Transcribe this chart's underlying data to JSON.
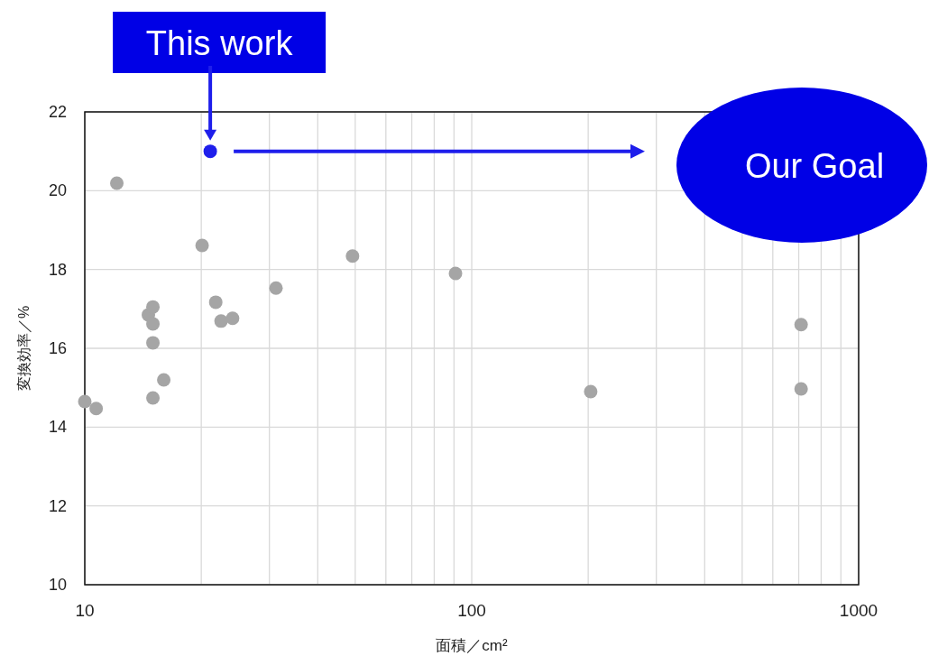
{
  "chart_data": {
    "type": "scatter",
    "xlabel": "面積／cm²",
    "ylabel": "変換効率／%",
    "log": "x",
    "grid": true,
    "marker": "circle",
    "xlim": [
      10,
      1000
    ],
    "ylim": [
      10,
      22
    ],
    "xticks": [
      10,
      {
        "value": 20,
        "label": null
      },
      {
        "value": 30,
        "label": null
      },
      {
        "value": 40,
        "label": null
      },
      {
        "value": 50,
        "label": null
      },
      {
        "value": 60,
        "label": null
      },
      {
        "value": 70,
        "label": null
      },
      {
        "value": 80,
        "label": null
      },
      {
        "value": 90,
        "label": null
      },
      100,
      {
        "value": 200,
        "label": null
      },
      {
        "value": 300,
        "label": null
      },
      {
        "value": 400,
        "label": null
      },
      {
        "value": 500,
        "label": null
      },
      {
        "value": 600,
        "label": null
      },
      {
        "value": 700,
        "label": null
      },
      {
        "value": 800,
        "label": null
      },
      {
        "value": 900,
        "label": null
      },
      1000
    ],
    "yticks": [
      10,
      12,
      14,
      16,
      18,
      20,
      22
    ],
    "series": [
      {
        "color": "#a5a5a5",
        "x": [
          10,
          10.7,
          12.1,
          14.6,
          15,
          15,
          15,
          15,
          16,
          20.1,
          21.8,
          22.5,
          24.1,
          31.2,
          49.2,
          90.8,
          203,
          710,
          710
        ],
        "values": [
          14.65,
          14.47,
          20.19,
          16.85,
          17.05,
          16.62,
          16.14,
          14.74,
          15.2,
          18.61,
          17.17,
          16.69,
          16.76,
          17.53,
          18.34,
          17.9,
          14.9,
          16.6,
          14.97
        ]
      },
      {
        "color": "#1e1eeb",
        "x": [
          21.1
        ],
        "values": [
          21.0
        ]
      }
    ],
    "annotations": [
      {
        "text": "This work",
        "x": 21.1,
        "y": 21.0
      },
      "Our Goal"
    ]
  }
}
